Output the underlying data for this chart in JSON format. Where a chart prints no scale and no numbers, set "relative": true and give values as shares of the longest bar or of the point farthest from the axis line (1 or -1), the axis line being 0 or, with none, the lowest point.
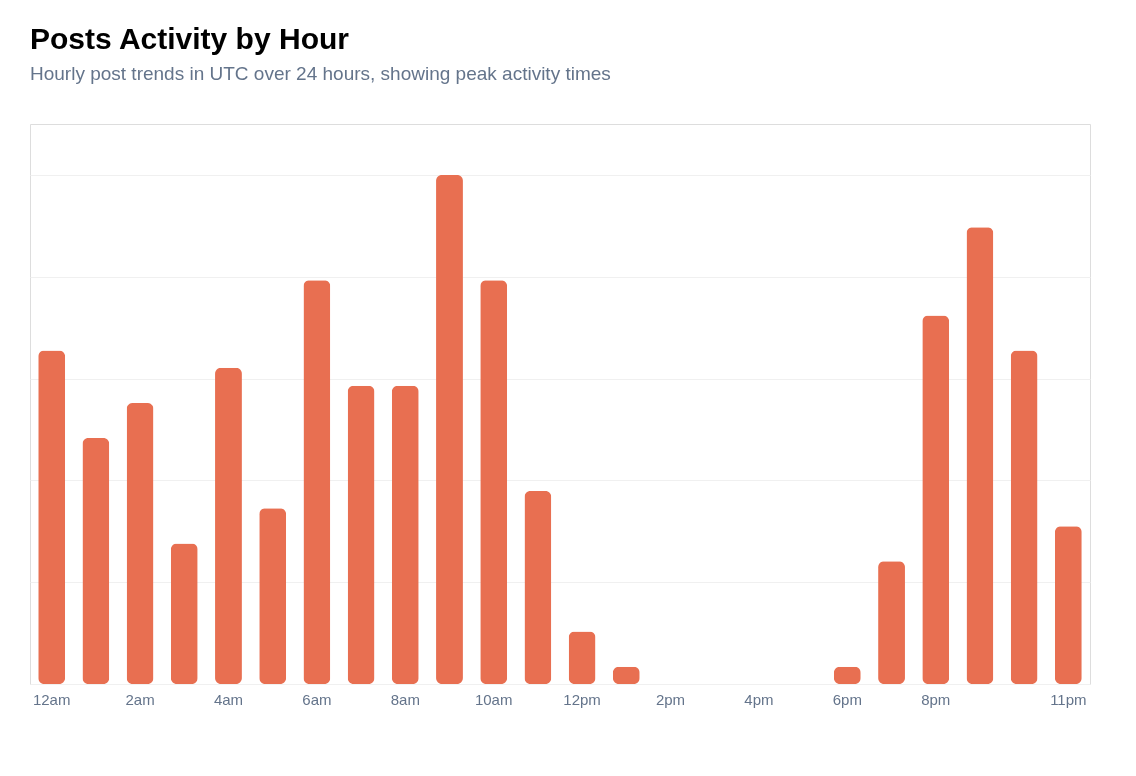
{
  "chart_data": {
    "type": "bar",
    "title": "Posts Activity by Hour",
    "subtitle": "Hourly post trends in UTC over 24 hours, showing peak activity times",
    "categories": [
      "12am",
      null,
      "2am",
      null,
      "4am",
      null,
      "6am",
      null,
      "8am",
      null,
      "10am",
      null,
      "12pm",
      null,
      "2pm",
      null,
      "4pm",
      null,
      "6pm",
      null,
      "8pm",
      null,
      null,
      "11pm"
    ],
    "values": [
      0.655,
      0.483,
      0.552,
      0.276,
      0.621,
      0.345,
      0.793,
      0.586,
      0.586,
      1,
      0.793,
      0.379,
      0.103,
      0.034,
      0,
      0,
      0,
      0,
      0.034,
      0.241,
      0.724,
      0.897,
      0.655,
      0.31
    ],
    "color": "#e86f51",
    "relative": true,
    "grid": "y"
  }
}
